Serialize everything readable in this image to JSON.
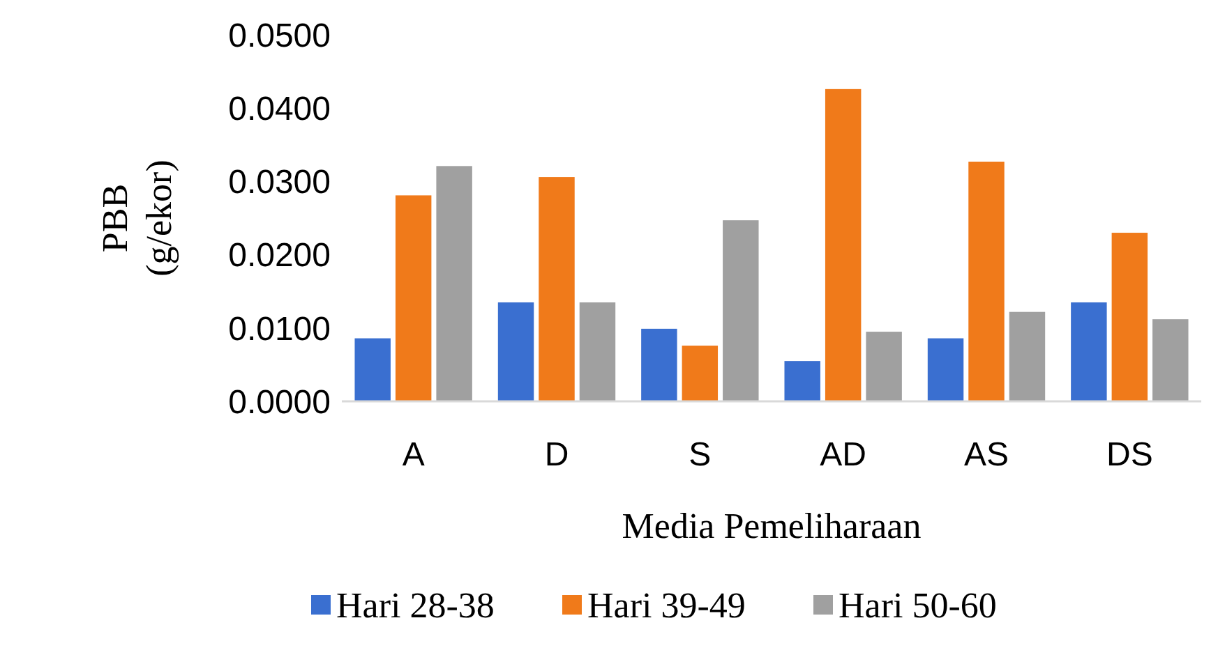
{
  "chart_data": {
    "type": "bar",
    "xlabel": "Media Pemeliharaan",
    "ylabel": "PBB (g/ekor)",
    "categories": [
      "A",
      "D",
      "S",
      "AD",
      "AS",
      "DS"
    ],
    "series": [
      {
        "name": "Hari 28-38",
        "color": "#3a6fd0",
        "values": [
          0.0086,
          0.0135,
          0.0099,
          0.0055,
          0.0086,
          0.0135
        ]
      },
      {
        "name": "Hari 39-49",
        "color": "#f07a1a",
        "values": [
          0.0281,
          0.0306,
          0.0076,
          0.0426,
          0.0327,
          0.023
        ]
      },
      {
        "name": "Hari 50-60",
        "color": "#a0a0a0",
        "values": [
          0.0321,
          0.0135,
          0.0247,
          0.0095,
          0.0122,
          0.0112
        ]
      }
    ],
    "ylim": [
      0,
      0.05
    ],
    "yticks": [
      {
        "value": 0,
        "label": "0.0000"
      },
      {
        "value": 0.01,
        "label": "0.0100"
      },
      {
        "value": 0.02,
        "label": "0.0200"
      },
      {
        "value": 0.03,
        "label": "0.0300"
      },
      {
        "value": 0.04,
        "label": "0.0400"
      },
      {
        "value": 0.05,
        "label": "0.0500"
      }
    ],
    "grid": false,
    "legend": "bottom"
  }
}
